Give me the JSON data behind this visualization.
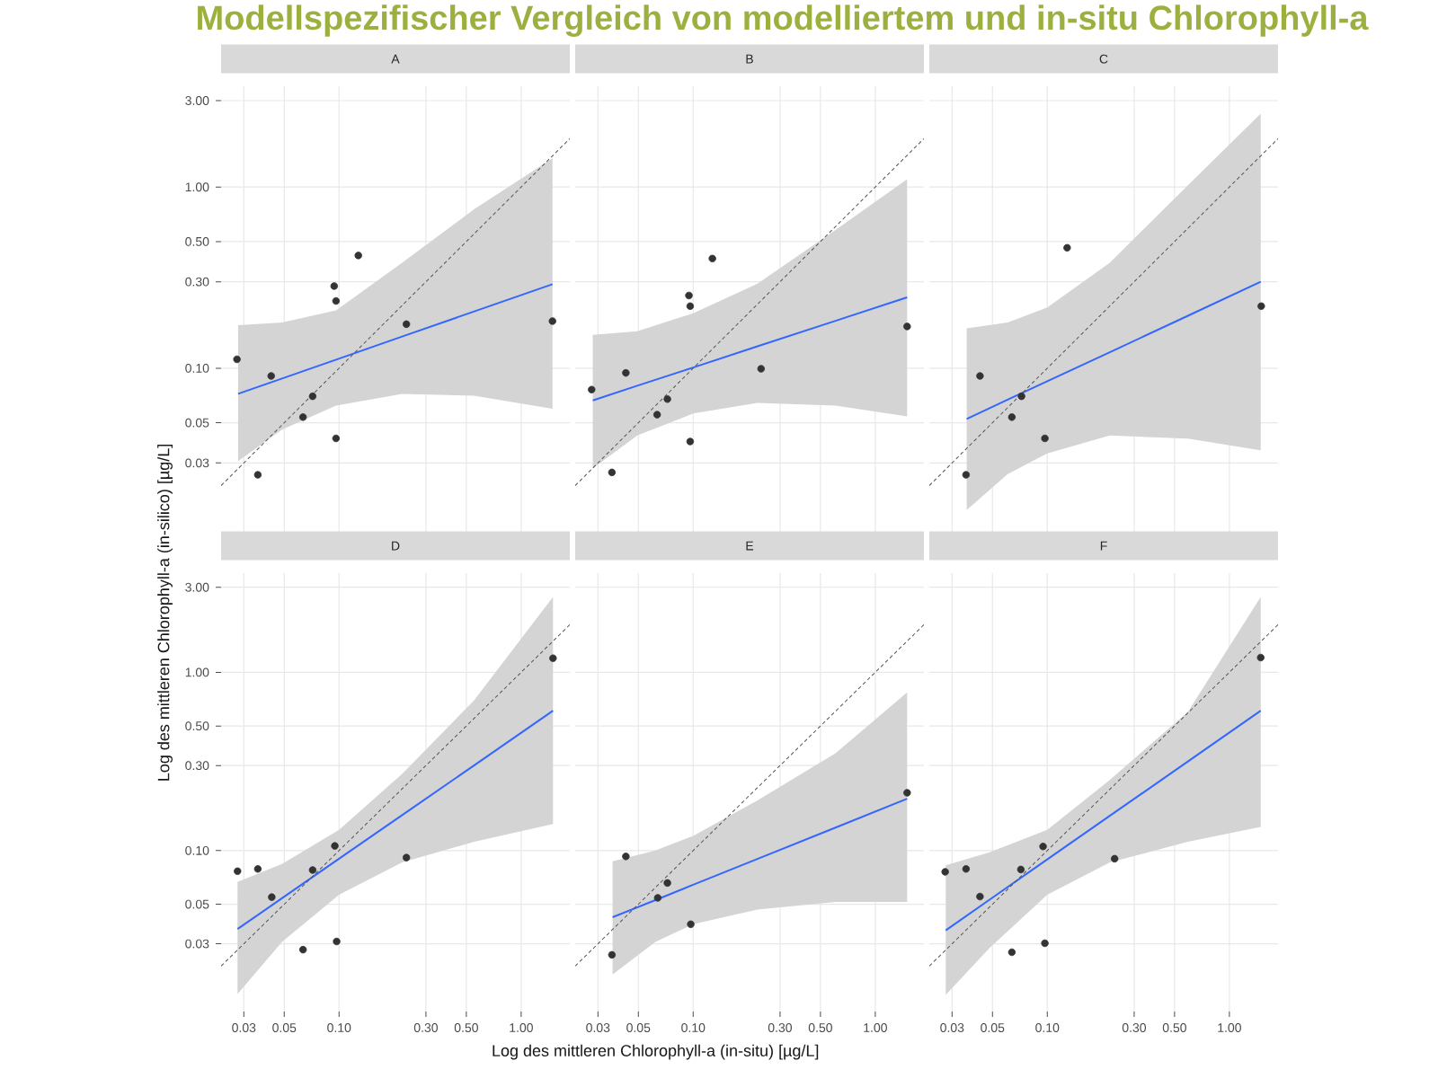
{
  "chart_data": [
    {
      "type": "scatter",
      "title": "A",
      "log": "xy",
      "grid": true,
      "tick_labels": "y",
      "xlim": [
        0.0225,
        1.85
      ],
      "ylim": [
        0.0125,
        3.6
      ],
      "xticks": [
        {
          "value": 0.03,
          "label": null
        },
        {
          "value": 0.05,
          "label": null
        },
        {
          "value": 0.1,
          "label": null
        },
        {
          "value": 0.3,
          "label": null
        },
        {
          "value": 0.5,
          "label": null
        },
        {
          "value": 1,
          "label": null
        }
      ],
      "yticks": [
        {
          "value": 0.03,
          "label": "0.03"
        },
        {
          "value": 0.05,
          "label": "0.05"
        },
        {
          "value": 0.1,
          "label": "0.10"
        },
        {
          "value": 0.3,
          "label": "0.30"
        },
        {
          "value": 0.5,
          "label": "0.50"
        },
        {
          "value": 1,
          "label": "1.00"
        },
        {
          "value": 3,
          "label": "3.00"
        }
      ],
      "series": [
        {
          "type": "line",
          "color": "#3366ff",
          "x": [
            0.0279,
            0.0486,
            0.0963,
            0.222,
            0.553,
            1.486
          ],
          "values": [
            0.0722,
            0.0877,
            0.1115,
            0.1495,
            0.2058,
            0.291
          ],
          "lower": [
            0.0307,
            0.0458,
            0.0621,
            0.0722,
            0.0706,
            0.0597
          ],
          "upper": [
            0.1726,
            0.179,
            0.2085,
            0.382,
            0.755,
            1.44
          ]
        },
        {
          "type": "line",
          "color": "#555555",
          "line_style": "dashed",
          "x": [
            0.0225,
            1.85
          ],
          "values": [
            0.0225,
            1.85
          ]
        },
        {
          "type": "scatter",
          "color": "#333333",
          "marker": "circle",
          "x": [
            0.0275,
            0.0358,
            0.0424,
            0.0634,
            0.0716,
            0.094,
            0.0962,
            0.0962,
            0.1276,
            0.2343,
            1.486
          ],
          "values": [
            0.112,
            0.0258,
            0.0906,
            0.0537,
            0.07,
            0.284,
            0.235,
            0.041,
            0.419,
            0.175,
            0.182
          ]
        }
      ]
    },
    {
      "type": "scatter",
      "title": "B",
      "annotations": [
        "Modellspezifischer Vergleich von modelliertem und in-situ Chlorophyll-a"
      ],
      "log": "xy",
      "grid": true,
      "tick_labels": false,
      "xlim": [
        0.0225,
        1.85
      ],
      "ylim": [
        0.0125,
        3.6
      ],
      "xticks": [
        {
          "value": 0.03,
          "label": null
        },
        {
          "value": 0.05,
          "label": null
        },
        {
          "value": 0.1,
          "label": null
        },
        {
          "value": 0.3,
          "label": null
        },
        {
          "value": 0.5,
          "label": null
        },
        {
          "value": 1,
          "label": null
        }
      ],
      "yticks": [
        {
          "value": 0.03,
          "label": null
        },
        {
          "value": 0.05,
          "label": null
        },
        {
          "value": 0.1,
          "label": null
        },
        {
          "value": 0.3,
          "label": null
        },
        {
          "value": 0.5,
          "label": null
        },
        {
          "value": 1,
          "label": null
        },
        {
          "value": 3,
          "label": null
        }
      ],
      "series": [
        {
          "type": "line",
          "color": "#3366ff",
          "x": [
            0.0281,
            0.0493,
            0.1,
            0.2255,
            0.605,
            1.496
          ],
          "values": [
            0.0664,
            0.08,
            0.1009,
            0.132,
            0.1826,
            0.246
          ],
          "lower": [
            0.028,
            0.0425,
            0.0562,
            0.0644,
            0.0621,
            0.0542
          ],
          "upper": [
            0.1528,
            0.16,
            0.201,
            0.293,
            0.58,
            1.104
          ]
        },
        {
          "type": "line",
          "color": "#555555",
          "line_style": "dashed",
          "x": [
            0.0225,
            1.85
          ],
          "values": [
            0.0225,
            1.85
          ]
        },
        {
          "type": "scatter",
          "color": "#333333",
          "marker": "circle",
          "x": [
            0.0277,
            0.0358,
            0.0427,
            0.0634,
            0.0722,
            0.0948,
            0.0963,
            0.0963,
            0.1275,
            0.236,
            1.496
          ],
          "values": [
            0.0762,
            0.0266,
            0.0942,
            0.0554,
            0.0675,
            0.252,
            0.22,
            0.0394,
            0.403,
            0.0993,
            0.17
          ]
        }
      ]
    },
    {
      "type": "scatter",
      "title": "C",
      "log": "xy",
      "grid": true,
      "tick_labels": false,
      "xlim": [
        0.0225,
        1.85
      ],
      "ylim": [
        0.0125,
        3.6
      ],
      "xticks": [
        {
          "value": 0.03,
          "label": null
        },
        {
          "value": 0.05,
          "label": null
        },
        {
          "value": 0.1,
          "label": null
        },
        {
          "value": 0.3,
          "label": null
        },
        {
          "value": 0.5,
          "label": null
        },
        {
          "value": 1,
          "label": null
        }
      ],
      "yticks": [
        {
          "value": 0.03,
          "label": null
        },
        {
          "value": 0.05,
          "label": null
        },
        {
          "value": 0.1,
          "label": null
        },
        {
          "value": 0.3,
          "label": null
        },
        {
          "value": 0.5,
          "label": null
        },
        {
          "value": 1,
          "label": null
        },
        {
          "value": 3,
          "label": null
        }
      ],
      "series": [
        {
          "type": "line",
          "color": "#3366ff",
          "x": [
            0.0361,
            0.0606,
            0.1,
            0.2204,
            0.592,
            1.486
          ],
          "values": [
            0.0525,
            0.067,
            0.0847,
            0.1225,
            0.1947,
            0.3
          ],
          "lower": [
            0.0165,
            0.026,
            0.0339,
            0.0425,
            0.0409,
            0.0352
          ],
          "upper": [
            0.166,
            0.179,
            0.2165,
            0.382,
            1.023,
            2.54
          ]
        },
        {
          "type": "line",
          "color": "#555555",
          "line_style": "dashed",
          "x": [
            0.0225,
            1.85
          ],
          "values": [
            0.0225,
            1.85
          ]
        },
        {
          "type": "scatter",
          "color": "#333333",
          "marker": "circle",
          "x": [
            0.0358,
            0.0427,
            0.0639,
            0.0722,
            0.097,
            0.1285,
            1.496
          ],
          "values": [
            0.0258,
            0.0906,
            0.0537,
            0.07,
            0.041,
            0.462,
            0.22
          ]
        }
      ]
    },
    {
      "type": "scatter",
      "title": "D",
      "ylabel": "Log des mittleren Chlorophyll-a (in-silico) [µg/L]",
      "log": "xy",
      "grid": true,
      "xlim": [
        0.0225,
        1.85
      ],
      "ylim": [
        0.0125,
        3.6
      ],
      "xticks": [
        {
          "value": 0.03,
          "label": "0.03"
        },
        {
          "value": 0.05,
          "label": "0.05"
        },
        {
          "value": 0.1,
          "label": "0.10"
        },
        {
          "value": 0.3,
          "label": "0.30"
        },
        {
          "value": 0.5,
          "label": "0.50"
        },
        {
          "value": 1,
          "label": "1.00"
        }
      ],
      "yticks": [
        {
          "value": 0.03,
          "label": "0.03"
        },
        {
          "value": 0.05,
          "label": "0.05"
        },
        {
          "value": 0.1,
          "label": "0.10"
        },
        {
          "value": 0.3,
          "label": "0.30"
        },
        {
          "value": 0.5,
          "label": "0.50"
        },
        {
          "value": 1,
          "label": "1.00"
        },
        {
          "value": 3,
          "label": "3.00"
        }
      ],
      "series": [
        {
          "type": "line",
          "color": "#3366ff",
          "x": [
            0.0277,
            0.0486,
            0.1,
            0.222,
            0.553,
            1.496
          ],
          "values": [
            0.0363,
            0.054,
            0.09,
            0.158,
            0.301,
            0.609
          ],
          "lower": [
            0.0157,
            0.0307,
            0.0565,
            0.0859,
            0.112,
            0.141
          ],
          "upper": [
            0.0667,
            0.084,
            0.1306,
            0.269,
            0.699,
            2.65
          ]
        },
        {
          "type": "line",
          "color": "#555555",
          "line_style": "dashed",
          "x": [
            0.0225,
            1.85
          ],
          "values": [
            0.0225,
            1.85
          ]
        },
        {
          "type": "scatter",
          "color": "#333333",
          "marker": "circle",
          "x": [
            0.0277,
            0.0358,
            0.0427,
            0.0634,
            0.0716,
            0.0948,
            0.097,
            0.2343,
            1.496
          ],
          "values": [
            0.0766,
            0.0789,
            0.0548,
            0.0278,
            0.0778,
            0.1062,
            0.0309,
            0.0913,
            1.2
          ]
        }
      ]
    },
    {
      "type": "scatter",
      "title": "E",
      "xlabel": "Log des mittleren Chlorophyll-a (in-situ) [µg/L]",
      "log": "xy",
      "grid": true,
      "tick_labels": "x",
      "xlim": [
        0.0225,
        1.85
      ],
      "ylim": [
        0.0125,
        3.6
      ],
      "xticks": [
        {
          "value": 0.03,
          "label": "0.03"
        },
        {
          "value": 0.05,
          "label": "0.05"
        },
        {
          "value": 0.1,
          "label": "0.10"
        },
        {
          "value": 0.3,
          "label": "0.30"
        },
        {
          "value": 0.5,
          "label": "0.50"
        },
        {
          "value": 1,
          "label": "1.00"
        }
      ],
      "yticks": [
        {
          "value": 0.03,
          "label": null
        },
        {
          "value": 0.05,
          "label": null
        },
        {
          "value": 0.1,
          "label": null
        },
        {
          "value": 0.3,
          "label": null
        },
        {
          "value": 0.5,
          "label": null
        },
        {
          "value": 1,
          "label": null
        },
        {
          "value": 3,
          "label": null
        }
      ],
      "series": [
        {
          "type": "line",
          "color": "#3366ff",
          "x": [
            0.0361,
            0.062,
            0.1,
            0.2255,
            0.605,
            1.496
          ],
          "values": [
            0.0423,
            0.0527,
            0.0643,
            0.0897,
            0.1346,
            0.1955
          ],
          "lower": [
            0.0202,
            0.0307,
            0.0386,
            0.0467,
            0.0515,
            0.0515
          ],
          "upper": [
            0.0871,
            0.1,
            0.121,
            0.191,
            0.352,
            0.771
          ]
        },
        {
          "type": "line",
          "color": "#555555",
          "line_style": "dashed",
          "x": [
            0.0225,
            1.85
          ],
          "values": [
            0.0225,
            1.85
          ]
        },
        {
          "type": "scatter",
          "color": "#333333",
          "marker": "circle",
          "x": [
            0.0358,
            0.0427,
            0.0639,
            0.0722,
            0.097,
            1.496
          ],
          "values": [
            0.026,
            0.0927,
            0.0543,
            0.0658,
            0.0386,
            0.211
          ]
        }
      ]
    },
    {
      "type": "scatter",
      "title": "F",
      "log": "xy",
      "grid": true,
      "tick_labels": "x",
      "xlim": [
        0.0225,
        1.85
      ],
      "ylim": [
        0.0125,
        3.6
      ],
      "xticks": [
        {
          "value": 0.03,
          "label": "0.03"
        },
        {
          "value": 0.05,
          "label": "0.05"
        },
        {
          "value": 0.1,
          "label": "0.10"
        },
        {
          "value": 0.3,
          "label": "0.30"
        },
        {
          "value": 0.5,
          "label": "0.50"
        },
        {
          "value": 1,
          "label": "1.00"
        }
      ],
      "yticks": [
        {
          "value": 0.03,
          "label": null
        },
        {
          "value": 0.05,
          "label": null
        },
        {
          "value": 0.1,
          "label": null
        },
        {
          "value": 0.3,
          "label": null
        },
        {
          "value": 0.5,
          "label": null
        },
        {
          "value": 1,
          "label": null
        },
        {
          "value": 3,
          "label": null
        }
      ],
      "series": [
        {
          "type": "line",
          "color": "#3366ff",
          "x": [
            0.0277,
            0.0482,
            0.1,
            0.2204,
            0.592,
            1.486
          ],
          "values": [
            0.0357,
            0.053,
            0.0892,
            0.1566,
            0.316,
            0.609
          ],
          "lower": [
            0.0155,
            0.0284,
            0.0565,
            0.0859,
            0.112,
            0.1356
          ],
          "upper": [
            0.0826,
            0.0977,
            0.1306,
            0.249,
            0.6,
            2.65
          ]
        },
        {
          "type": "line",
          "color": "#555555",
          "line_style": "dashed",
          "x": [
            0.0225,
            1.85
          ],
          "values": [
            0.0225,
            1.85
          ]
        },
        {
          "type": "scatter",
          "color": "#333333",
          "marker": "circle",
          "x": [
            0.0275,
            0.0358,
            0.0427,
            0.0639,
            0.0716,
            0.0948,
            0.097,
            0.2343,
            1.486
          ],
          "values": [
            0.076,
            0.0789,
            0.0552,
            0.0269,
            0.0783,
            0.1054,
            0.0302,
            0.09,
            1.21
          ]
        }
      ]
    }
  ]
}
